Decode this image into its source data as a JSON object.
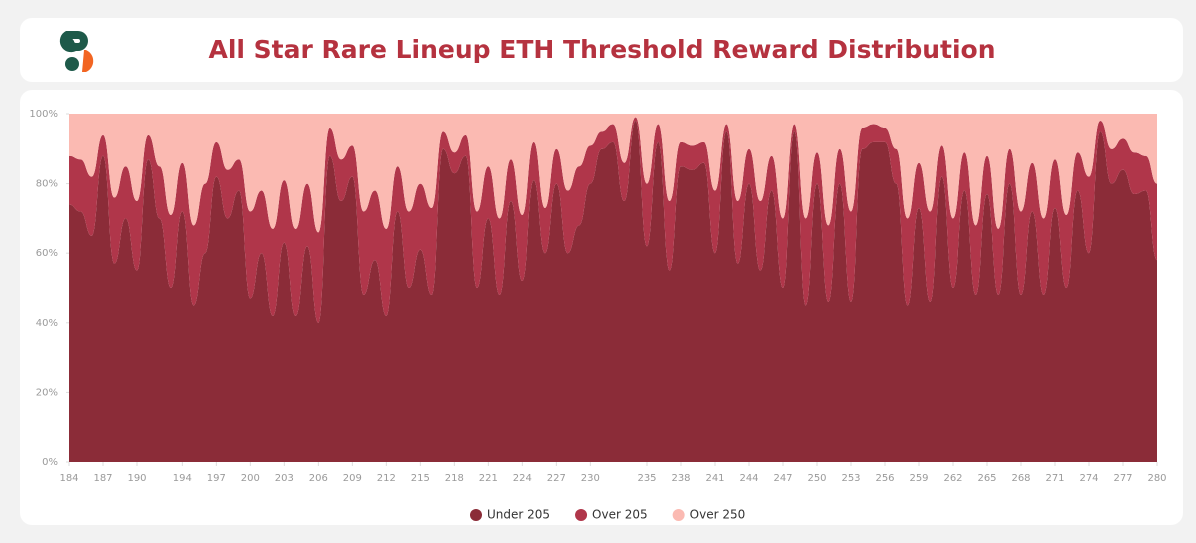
{
  "chart_data": {
    "type": "stacked_area",
    "title": "All Star Rare Lineup ETH Threshold Reward Distribution",
    "x": [
      184,
      185,
      186,
      187,
      188,
      189,
      190,
      191,
      192,
      193,
      194,
      195,
      196,
      197,
      198,
      199,
      200,
      201,
      202,
      203,
      204,
      205,
      206,
      207,
      208,
      209,
      210,
      211,
      212,
      213,
      214,
      215,
      216,
      217,
      218,
      219,
      220,
      221,
      222,
      223,
      224,
      225,
      226,
      227,
      228,
      229,
      230,
      231,
      232,
      233,
      234,
      235,
      236,
      237,
      238,
      239,
      240,
      241,
      242,
      243,
      244,
      245,
      246,
      247,
      248,
      249,
      250,
      251,
      252,
      253,
      254,
      255,
      256,
      257,
      258,
      259,
      260,
      261,
      262,
      263,
      264,
      265,
      266,
      267,
      268,
      269,
      270,
      271,
      272,
      273,
      274,
      275,
      276,
      277,
      278,
      279,
      280
    ],
    "series": [
      {
        "name": "Under 205",
        "color": "#8b2c38",
        "values": [
          74,
          72,
          65,
          88,
          57,
          70,
          55,
          87,
          70,
          50,
          72,
          45,
          60,
          82,
          70,
          78,
          47,
          60,
          42,
          63,
          42,
          62,
          40,
          88,
          75,
          82,
          48,
          58,
          42,
          72,
          50,
          61,
          48,
          90,
          83,
          88,
          50,
          70,
          48,
          75,
          52,
          81,
          60,
          80,
          60,
          68,
          80,
          90,
          92,
          75,
          98,
          62,
          92,
          55,
          85,
          84,
          86,
          60,
          95,
          57,
          80,
          55,
          78,
          50,
          95,
          45,
          80,
          46,
          80,
          46,
          90,
          92,
          92,
          80,
          45,
          73,
          46,
          82,
          50,
          78,
          48,
          77,
          48,
          80,
          48,
          72,
          48,
          73,
          50,
          78,
          60,
          95,
          80,
          84,
          77,
          78,
          58
        ]
      },
      {
        "name": "Over 205",
        "color": "#b0364a",
        "values": [
          14,
          15,
          17,
          6,
          19,
          15,
          20,
          7,
          15,
          21,
          14,
          23,
          20,
          10,
          14,
          9,
          25,
          18,
          25,
          18,
          25,
          18,
          26,
          8,
          12,
          9,
          24,
          20,
          25,
          13,
          22,
          19,
          25,
          5,
          6,
          6,
          22,
          15,
          22,
          12,
          19,
          11,
          13,
          10,
          18,
          17,
          11,
          5,
          5,
          11,
          1,
          18,
          5,
          20,
          7,
          7,
          6,
          18,
          2,
          18,
          10,
          20,
          10,
          20,
          2,
          25,
          9,
          22,
          10,
          26,
          6,
          5,
          4,
          10,
          25,
          13,
          26,
          9,
          20,
          11,
          20,
          11,
          19,
          10,
          24,
          14,
          22,
          14,
          21,
          11,
          22,
          3,
          10,
          9,
          12,
          10,
          22
        ]
      },
      {
        "name": "Over 250",
        "color": "#fbbab2",
        "values": [
          12,
          13,
          18,
          6,
          24,
          15,
          25,
          6,
          15,
          29,
          14,
          32,
          20,
          8,
          16,
          13,
          28,
          22,
          33,
          19,
          33,
          20,
          34,
          4,
          13,
          9,
          28,
          22,
          33,
          15,
          28,
          20,
          27,
          5,
          11,
          6,
          28,
          15,
          30,
          13,
          29,
          8,
          27,
          10,
          22,
          15,
          9,
          5,
          3,
          14,
          1,
          20,
          3,
          25,
          8,
          9,
          8,
          22,
          3,
          25,
          10,
          25,
          12,
          30,
          3,
          30,
          11,
          32,
          10,
          28,
          4,
          3,
          4,
          10,
          30,
          14,
          28,
          9,
          30,
          11,
          32,
          12,
          33,
          10,
          28,
          14,
          30,
          13,
          29,
          11,
          18,
          2,
          10,
          7,
          11,
          12,
          20
        ]
      }
    ],
    "xlim": [
      184,
      280
    ],
    "xticks": [
      184,
      187,
      190,
      194,
      197,
      200,
      203,
      206,
      209,
      212,
      215,
      218,
      221,
      224,
      227,
      230,
      235,
      238,
      241,
      244,
      247,
      250,
      253,
      256,
      259,
      262,
      265,
      268,
      271,
      274,
      277,
      280
    ],
    "ylim": [
      0,
      100
    ],
    "yticks": [
      {
        "value": 0,
        "label": "0%"
      },
      {
        "value": 20,
        "label": "20%"
      },
      {
        "value": 40,
        "label": "40%"
      },
      {
        "value": 60,
        "label": "60%"
      },
      {
        "value": 80,
        "label": "80%"
      },
      {
        "value": 100,
        "label": "100%"
      }
    ]
  }
}
